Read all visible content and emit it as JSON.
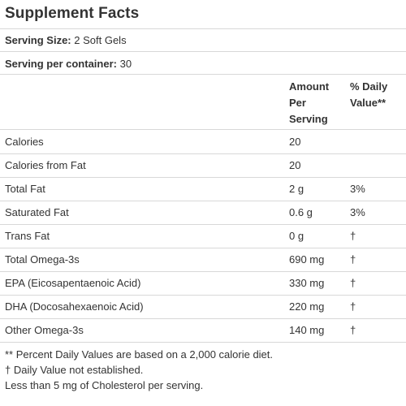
{
  "title": "Supplement Facts",
  "serving_size": {
    "label": "Serving Size:",
    "value": "2 Soft Gels"
  },
  "servings_per_container": {
    "label": "Serving per container:",
    "value": "30"
  },
  "columns": {
    "amount": [
      "Amount",
      "Per",
      "Serving"
    ],
    "daily_value": [
      "% Daily",
      "Value**"
    ]
  },
  "rows": [
    {
      "name": "Calories",
      "amount": "20",
      "dv": ""
    },
    {
      "name": "Calories from Fat",
      "amount": "20",
      "dv": ""
    },
    {
      "name": "Total Fat",
      "amount": "2 g",
      "dv": "3%"
    },
    {
      "name": "Saturated Fat",
      "amount": "0.6 g",
      "dv": "3%"
    },
    {
      "name": "Trans Fat",
      "amount": "0 g",
      "dv": "†"
    },
    {
      "name": "Total Omega-3s",
      "amount": "690 mg",
      "dv": "†"
    },
    {
      "name": "EPA (Eicosapentaenoic Acid)",
      "amount": "330 mg",
      "dv": "†"
    },
    {
      "name": "DHA (Docosahexaenoic Acid)",
      "amount": "220 mg",
      "dv": "†"
    },
    {
      "name": "Other Omega-3s",
      "amount": "140 mg",
      "dv": "†"
    }
  ],
  "footnotes": [
    "** Percent Daily Values are based on a 2,000 calorie diet.",
    "† Daily Value not established.",
    "Less than 5 mg of Cholesterol per serving."
  ]
}
